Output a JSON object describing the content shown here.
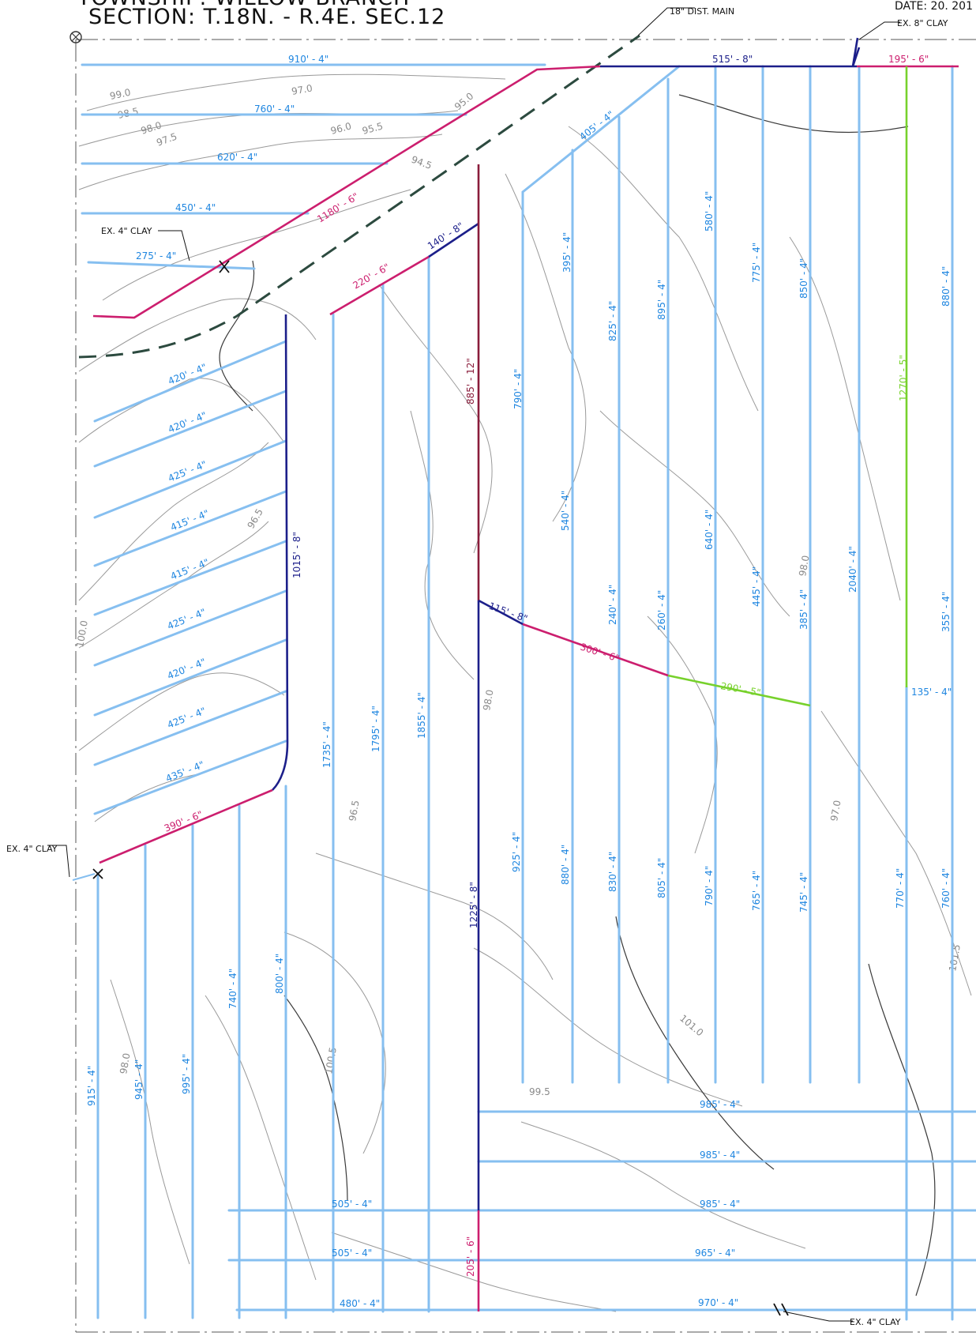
{
  "header": {
    "township": "TOWNSHIP: WILLOW BRANCH",
    "section": "SECTION: T.18N. - R.4E. SEC.12",
    "date": "DATE: 20. 201"
  },
  "callouts": {
    "dist_main": "18\" DIST. MAIN",
    "ex_8_clay": "EX. 8\" CLAY",
    "ex_4_clay": "EX. 4\" CLAY"
  },
  "mains": [
    {
      "label": "515' - 8\"",
      "color": "#1c1f8a"
    },
    {
      "label": "195' - 6\"",
      "color": "#cc1e6e"
    },
    {
      "label": "1180' - 6\"",
      "color": "#cc1e6e"
    },
    {
      "label": "140' - 8\"",
      "color": "#1c1f8a"
    },
    {
      "label": "220' - 6\"",
      "color": "#cc1e6e"
    },
    {
      "label": "885' - 12\"",
      "color": "#8a1c3b"
    },
    {
      "label": "1015' - 8\"",
      "color": "#1c1f8a"
    },
    {
      "label": "1225' - 8\"",
      "color": "#1c1f8a"
    },
    {
      "label": "115' - 8\"",
      "color": "#1c1f8a"
    },
    {
      "label": "300' - 6\"",
      "color": "#cc1e6e"
    },
    {
      "label": "290' - 5\"",
      "color": "#77d12c"
    },
    {
      "label": "1270' - 5\"",
      "color": "#77d12c"
    },
    {
      "label": "390' - 6\"",
      "color": "#cc1e6e"
    },
    {
      "label": "205' - 6\"",
      "color": "#cc1e6e"
    }
  ],
  "laterals": {
    "top_left": [
      "910' - 4\"",
      "760' - 4\"",
      "620' - 4\"",
      "450' - 4\"",
      "275' - 4\""
    ],
    "left_diag": [
      "420' - 4\"",
      "420' - 4\"",
      "425' - 4\"",
      "415' - 4\"",
      "415' - 4\"",
      "425' - 4\"",
      "420' - 4\"",
      "425' - 4\"",
      "435' - 4\""
    ],
    "upper_vertical": [
      "405' - 4\"",
      "395' - 4\"",
      "825' - 4\"",
      "895' - 4\"",
      "580' - 4\"",
      "775' - 4\"",
      "850' - 4\"",
      "880' - 4\"",
      "790' - 4\""
    ],
    "middle_vertical": [
      "540' - 4\"",
      "240' - 4\"",
      "260' - 4\"",
      "640' - 4\"",
      "445' - 4\"",
      "385' - 4\"",
      "2040' - 4\"",
      "355' - 4\"",
      "135' - 4\""
    ],
    "center_vertical": [
      "1735' - 4\"",
      "1795' - 4\"",
      "1855' - 4\""
    ],
    "lower_vertical": [
      "925' - 4\"",
      "880' - 4\"",
      "830' - 4\"",
      "805' - 4\"",
      "790' - 4\"",
      "765' - 4\"",
      "745' - 4\"",
      "770' - 4\"",
      "760' - 4\""
    ],
    "bottom_left_vertical": [
      "915' - 4\"",
      "945' - 4\"",
      "995' - 4\"",
      "740' - 4\"",
      "800' - 4\""
    ],
    "bottom_horizontal": [
      "985' - 4\"",
      "985' - 4\"",
      "985' - 4\"",
      "965' - 4\"",
      "970' - 4\"",
      "505' - 4\"",
      "505' - 4\"",
      "480' - 4\""
    ]
  },
  "elevations": [
    "99.0",
    "98.5",
    "98.0",
    "97.5",
    "97.0",
    "96.0",
    "95.5",
    "95.0",
    "96.5",
    "94.5",
    "100.0",
    "100.5",
    "101.0",
    "101.5",
    "99.5"
  ]
}
